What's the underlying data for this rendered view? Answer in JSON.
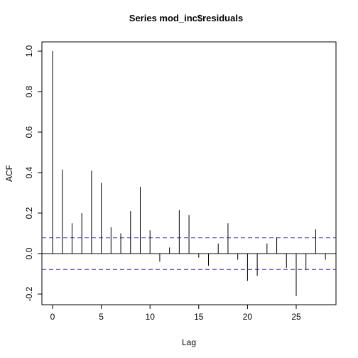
{
  "chart_data": {
    "type": "bar",
    "title": "Series  mod_inc$residuals",
    "xlabel": "Lag",
    "ylabel": "ACF",
    "xlim": [
      0,
      28
    ],
    "ylim": [
      -0.25,
      1.0
    ],
    "x_ticks": [
      0,
      5,
      10,
      15,
      20,
      25
    ],
    "y_ticks": [
      -0.2,
      0.0,
      0.2,
      0.4,
      0.6,
      0.8,
      1.0
    ],
    "x_tick_labels": [
      "0",
      "5",
      "10",
      "15",
      "20",
      "25"
    ],
    "y_tick_labels": [
      "-0.2",
      "0.0",
      "0.2",
      "0.4",
      "0.6",
      "0.8",
      "1.0"
    ],
    "lags": [
      0,
      1,
      2,
      3,
      4,
      5,
      6,
      7,
      8,
      9,
      10,
      11,
      12,
      13,
      14,
      15,
      16,
      17,
      18,
      19,
      20,
      21,
      22,
      23,
      24,
      25,
      26,
      27,
      28
    ],
    "acf": [
      1.0,
      0.415,
      0.15,
      0.2,
      0.41,
      0.35,
      0.13,
      0.1,
      0.21,
      0.33,
      0.115,
      -0.04,
      0.03,
      0.215,
      0.19,
      -0.02,
      -0.06,
      0.05,
      0.15,
      -0.03,
      -0.135,
      -0.11,
      0.05,
      0.08,
      -0.07,
      -0.21,
      -0.08,
      0.12,
      -0.03
    ],
    "confidence_bound": 0.078,
    "colors": {
      "spikes": "#000000",
      "bounds": "#3b3bd6",
      "axes": "#000000"
    }
  }
}
